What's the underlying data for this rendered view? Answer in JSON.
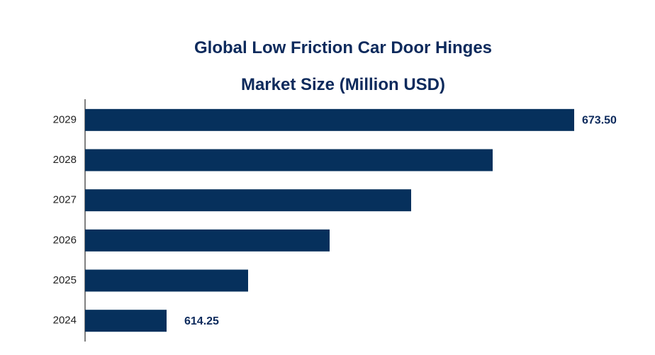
{
  "chart_data": {
    "type": "bar",
    "orientation": "horizontal",
    "title": "Global Low Friction Car Door Hinges Market Size (Million USD)",
    "categories": [
      "2029",
      "2028",
      "2027",
      "2026",
      "2025",
      "2024"
    ],
    "values": [
      673.5,
      661.65,
      649.8,
      637.95,
      626.1,
      614.25
    ],
    "value_labels": [
      "673.50",
      null,
      null,
      null,
      null,
      "614.25"
    ],
    "color": "#06305c",
    "xlim": [
      602.4,
      673.5
    ]
  }
}
